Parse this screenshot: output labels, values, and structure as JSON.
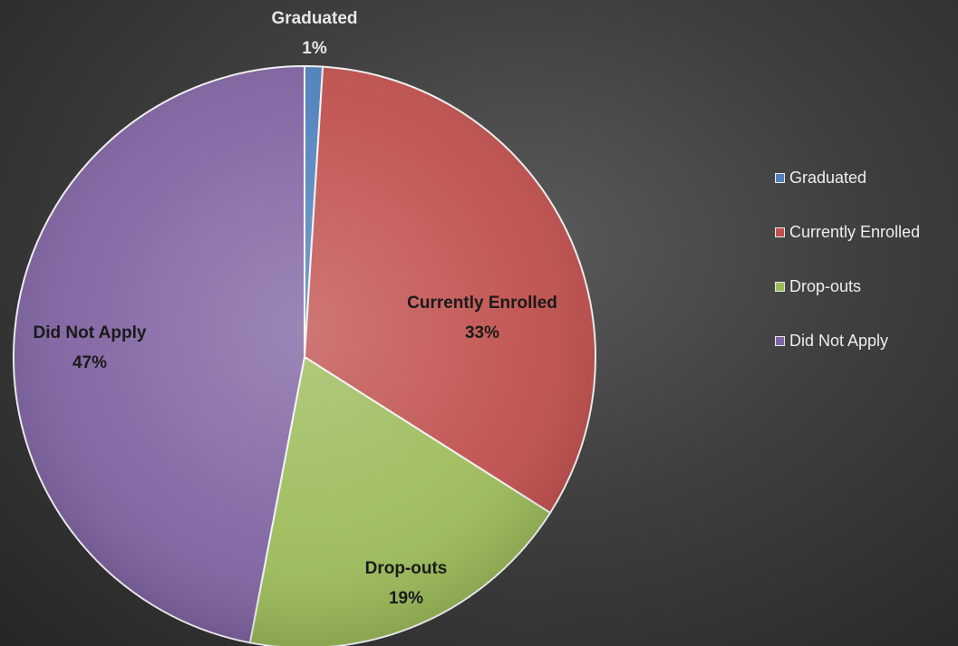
{
  "chart_data": {
    "type": "pie",
    "categories": [
      "Graduated",
      "Currently Enrolled",
      "Drop-outs",
      "Did Not Apply"
    ],
    "values": [
      1,
      33,
      19,
      47
    ],
    "value_labels": [
      "1%",
      "33%",
      "19%",
      "47%"
    ],
    "colors": [
      "#4f81bd",
      "#c0504d",
      "#9bbb59",
      "#8064a2"
    ],
    "legend_position": "right",
    "start_angle_deg": 0,
    "direction": "clockwise"
  }
}
